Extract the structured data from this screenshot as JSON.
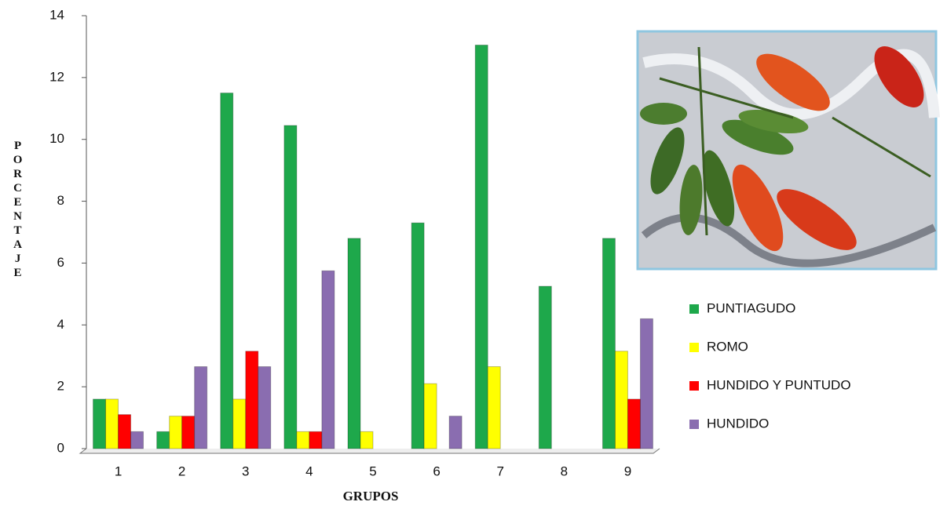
{
  "chart_data": {
    "type": "bar",
    "y_label": "PORCENTAJE",
    "x_label": "GRUPOS",
    "categories": [
      "1",
      "2",
      "3",
      "4",
      "5",
      "6",
      "7",
      "8",
      "9"
    ],
    "series": [
      {
        "name": "PUNTIAGUDO",
        "color": "#1ea84b",
        "values": [
          1.6,
          0.55,
          11.5,
          10.45,
          6.8,
          7.3,
          13.05,
          5.25,
          6.8
        ]
      },
      {
        "name": "ROMO",
        "color": "#ffff00",
        "values": [
          1.6,
          1.05,
          1.6,
          0.55,
          0.55,
          2.1,
          2.65,
          0,
          3.15
        ]
      },
      {
        "name": "HUNDIDO Y PUNTUDO",
        "color": "#ff0000",
        "values": [
          1.1,
          1.05,
          3.15,
          0.55,
          0,
          0,
          0,
          0,
          1.6
        ]
      },
      {
        "name": "HUNDIDO",
        "color": "#8a6db0",
        "values": [
          0.55,
          2.65,
          2.65,
          5.75,
          0,
          1.05,
          0,
          0,
          4.2
        ]
      }
    ],
    "ylim": [
      0,
      14
    ],
    "yticks": [
      0,
      2,
      4,
      6,
      8,
      10,
      12,
      14
    ]
  }
}
